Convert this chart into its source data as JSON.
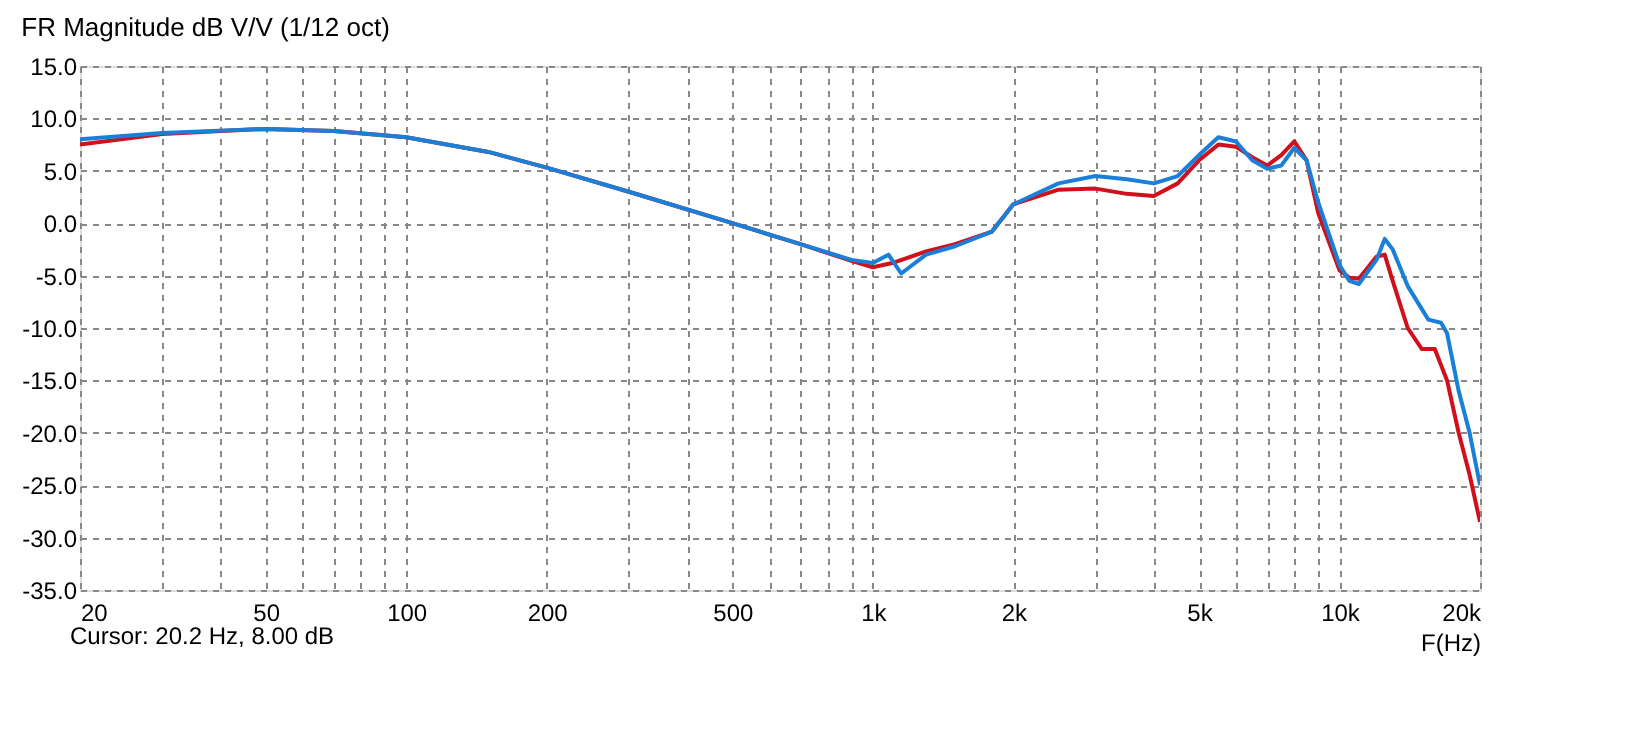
{
  "chart_data": {
    "type": "line",
    "title": "FR Magnitude dB V/V (1/12 oct)",
    "xlabel": "F(Hz)",
    "log": "x",
    "grid": true,
    "legend": false,
    "line_style": "solid",
    "marker": "none",
    "xlim": [
      20,
      20000
    ],
    "ylim": [
      -35,
      15
    ],
    "xticks": [
      20,
      {
        "value": 30,
        "label": null
      },
      {
        "value": 40,
        "label": null
      },
      50,
      {
        "value": 60,
        "label": null
      },
      {
        "value": 70,
        "label": null
      },
      {
        "value": 80,
        "label": null
      },
      {
        "value": 90,
        "label": null
      },
      100,
      200,
      {
        "value": 300,
        "label": null
      },
      {
        "value": 400,
        "label": null
      },
      500,
      {
        "value": 600,
        "label": null
      },
      {
        "value": 700,
        "label": null
      },
      {
        "value": 800,
        "label": null
      },
      {
        "value": 900,
        "label": null
      },
      {
        "value": 1000,
        "label": "1k"
      },
      {
        "value": 2000,
        "label": "2k"
      },
      {
        "value": 3000,
        "label": null
      },
      {
        "value": 4000,
        "label": null
      },
      {
        "value": 5000,
        "label": "5k"
      },
      {
        "value": 6000,
        "label": null
      },
      {
        "value": 7000,
        "label": null
      },
      {
        "value": 8000,
        "label": null
      },
      {
        "value": 9000,
        "label": null
      },
      {
        "value": 10000,
        "label": "10k"
      },
      {
        "value": 20000,
        "label": "20k"
      }
    ],
    "yticks": [
      {
        "value": -35,
        "label": "-35.0"
      },
      {
        "value": -30,
        "label": "-30.0"
      },
      {
        "value": -25,
        "label": "-25.0"
      },
      {
        "value": -20,
        "label": "-20.0"
      },
      {
        "value": -15,
        "label": "-15.0"
      },
      {
        "value": -10,
        "label": "-10.0"
      },
      {
        "value": -5,
        "label": "-5.0"
      },
      {
        "value": 0,
        "label": "0.0"
      },
      {
        "value": 5,
        "label": "5.0"
      },
      {
        "value": 10,
        "label": "10.0"
      },
      {
        "value": 15,
        "label": "15.0"
      }
    ],
    "annotations": [
      "Cursor: 20.2 Hz, 8.00 dB"
    ],
    "series": [
      {
        "color": "#d0101c",
        "x": [
          20,
          30,
          50,
          70,
          100,
          150,
          200,
          300,
          500,
          700,
          900,
          1000,
          1100,
          1300,
          1500,
          1800,
          2000,
          2500,
          3000,
          3500,
          4000,
          4500,
          5000,
          5500,
          6000,
          6500,
          7000,
          7500,
          8000,
          8500,
          9000,
          10000,
          10500,
          11000,
          12000,
          12500,
          13000,
          14000,
          15000,
          16000,
          17000,
          18000,
          19000,
          20000
        ],
        "values": [
          7.5,
          8.5,
          9.0,
          8.8,
          8.2,
          6.8,
          5.3,
          3.0,
          0.0,
          -2.0,
          -3.6,
          -4.2,
          -3.8,
          -2.7,
          -2.0,
          -0.8,
          1.8,
          3.2,
          3.3,
          2.8,
          2.6,
          3.8,
          6.0,
          7.5,
          7.3,
          6.3,
          5.5,
          6.5,
          7.8,
          6.0,
          1.0,
          -4.5,
          -5.2,
          -5.3,
          -3.2,
          -3.0,
          -5.5,
          -10.0,
          -12.0,
          -12.0,
          -15.0,
          -20.0,
          -24.0,
          -28.5
        ]
      },
      {
        "color": "#1a7fd8",
        "x": [
          20,
          30,
          50,
          70,
          100,
          150,
          200,
          300,
          500,
          700,
          900,
          1000,
          1080,
          1150,
          1300,
          1500,
          1800,
          2000,
          2500,
          3000,
          3500,
          4000,
          4500,
          5000,
          5500,
          6000,
          6500,
          7000,
          7500,
          8000,
          8500,
          9000,
          10000,
          10500,
          11000,
          12000,
          12500,
          13000,
          14000,
          15500,
          16500,
          17000,
          18000,
          19000,
          20000
        ],
        "values": [
          8.0,
          8.6,
          9.0,
          8.8,
          8.2,
          6.8,
          5.3,
          3.0,
          0.0,
          -2.0,
          -3.5,
          -3.8,
          -3.0,
          -4.8,
          -3.0,
          -2.2,
          -0.8,
          1.8,
          3.8,
          4.5,
          4.2,
          3.8,
          4.5,
          6.5,
          8.2,
          7.8,
          6.0,
          5.2,
          5.5,
          7.2,
          6.0,
          2.0,
          -4.0,
          -5.5,
          -5.8,
          -3.5,
          -1.5,
          -2.5,
          -6.0,
          -9.2,
          -9.5,
          -10.5,
          -16.0,
          -20.0,
          -25.0
        ]
      }
    ]
  }
}
